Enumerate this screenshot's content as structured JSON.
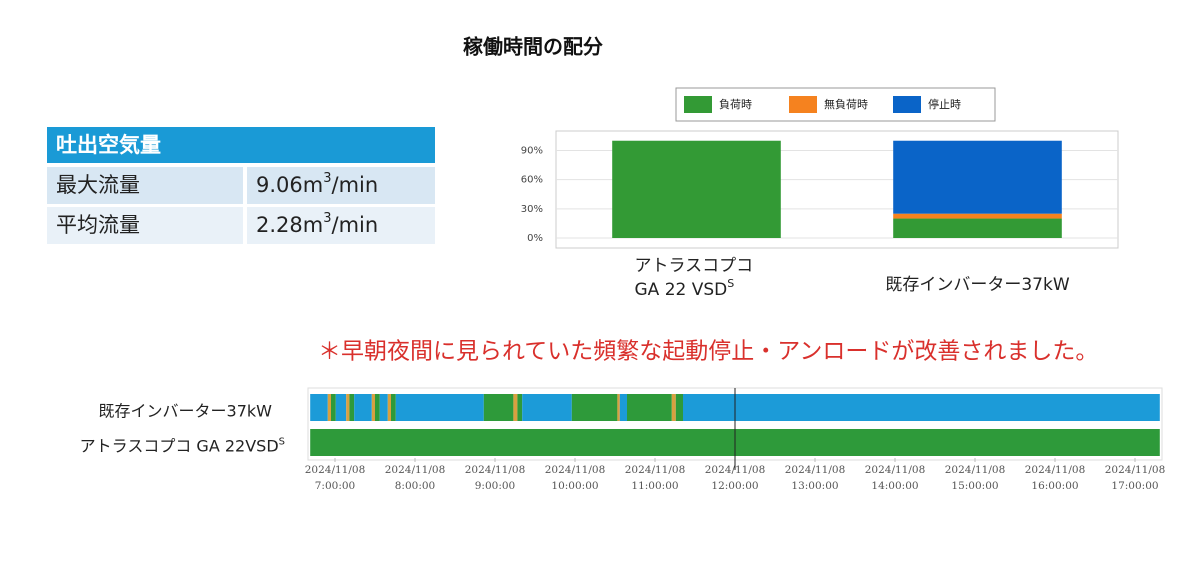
{
  "title": "稼働時間の配分",
  "table": {
    "header": "吐出空気量",
    "rows": [
      [
        {
          "text": "最大流量"
        },
        {
          "text": "9.06m",
          "sup": "3",
          "unit": "/min"
        }
      ],
      [
        {
          "text": "平均流量"
        },
        {
          "text": "2.28m",
          "sup": "3",
          "unit": "/min"
        }
      ]
    ]
  },
  "note": "＊早朝夜間に見られていた頻繁な起動停止・アンロードが改善されました。",
  "chart_data": [
    {
      "type": "bar",
      "stacked": true,
      "categories": [
        "アトラスコプコ\nGA 22 VSD",
        "既存インバーター37kW"
      ],
      "category_superscripts": [
        "S",
        null
      ],
      "series": [
        {
          "name": "負荷時",
          "color": "#339a35",
          "values": [
            100,
            20
          ]
        },
        {
          "name": "無負荷時",
          "color": "#f5821f",
          "values": [
            0,
            5
          ]
        },
        {
          "name": "停止時",
          "color": "#0a64c8",
          "values": [
            0,
            75
          ]
        }
      ],
      "ylim": [
        0,
        110
      ],
      "yticks": [
        {
          "value": 0,
          "label": "0%"
        },
        {
          "value": 30,
          "label": "30%"
        },
        {
          "value": 60,
          "label": "60%"
        },
        {
          "value": 90,
          "label": "90%"
        }
      ],
      "grid": true,
      "legend": "top"
    },
    {
      "type": "timeline",
      "xlim": [
        6.69,
        17.31
      ],
      "xticks": [
        {
          "value": 7,
          "label": "2024/11/08\n7:00:00"
        },
        {
          "value": 8,
          "label": "2024/11/08\n8:00:00"
        },
        {
          "value": 9,
          "label": "2024/11/08\n9:00:00"
        },
        {
          "value": 10,
          "label": "2024/11/08\n10:00:00"
        },
        {
          "value": 11,
          "label": "2024/11/08\n11:00:00"
        },
        {
          "value": 12,
          "label": "2024/11/08\n12:00:00"
        },
        {
          "value": 13,
          "label": "2024/11/08\n13:00:00"
        },
        {
          "value": 14,
          "label": "2024/11/08\n14:00:00"
        },
        {
          "value": 15,
          "label": "2024/11/08\n15:00:00"
        },
        {
          "value": 16,
          "label": "2024/11/08\n16:00:00"
        },
        {
          "value": 17,
          "label": "2024/11/08\n17:00:00"
        }
      ],
      "cursor": 12,
      "rows": [
        {
          "name": "既存インバーター37kW",
          "segments": [
            {
              "start": 6.69,
              "end": 6.91,
              "color": "#1c9bd8"
            },
            {
              "start": 6.91,
              "end": 6.95,
              "color": "#d8a040"
            },
            {
              "start": 6.95,
              "end": 7.01,
              "color": "#2e9a3a"
            },
            {
              "start": 7.01,
              "end": 7.14,
              "color": "#1c9bd8"
            },
            {
              "start": 7.14,
              "end": 7.18,
              "color": "#d8a040"
            },
            {
              "start": 7.18,
              "end": 7.24,
              "color": "#2e9a3a"
            },
            {
              "start": 7.24,
              "end": 7.46,
              "color": "#1c9bd8"
            },
            {
              "start": 7.46,
              "end": 7.5,
              "color": "#d8a040"
            },
            {
              "start": 7.5,
              "end": 7.56,
              "color": "#2e9a3a"
            },
            {
              "start": 7.56,
              "end": 7.66,
              "color": "#1c9bd8"
            },
            {
              "start": 7.66,
              "end": 7.7,
              "color": "#d8a040"
            },
            {
              "start": 7.7,
              "end": 7.76,
              "color": "#2e9a3a"
            },
            {
              "start": 7.76,
              "end": 8.86,
              "color": "#1c9bd8"
            },
            {
              "start": 8.86,
              "end": 9.23,
              "color": "#2e9a3a"
            },
            {
              "start": 9.23,
              "end": 9.28,
              "color": "#d8a040"
            },
            {
              "start": 9.28,
              "end": 9.34,
              "color": "#2e9a3a"
            },
            {
              "start": 9.34,
              "end": 9.96,
              "color": "#1c9bd8"
            },
            {
              "start": 9.96,
              "end": 10.53,
              "color": "#2e9a3a"
            },
            {
              "start": 10.53,
              "end": 10.56,
              "color": "#d8a040"
            },
            {
              "start": 10.56,
              "end": 10.65,
              "color": "#1c9bd8"
            },
            {
              "start": 10.65,
              "end": 11.21,
              "color": "#2e9a3a"
            },
            {
              "start": 11.21,
              "end": 11.26,
              "color": "#d8a040"
            },
            {
              "start": 11.26,
              "end": 11.35,
              "color": "#2e9a3a"
            },
            {
              "start": 11.35,
              "end": 17.31,
              "color": "#1c9bd8"
            }
          ]
        },
        {
          "name": "アトラスコプコ GA 22VSD",
          "superscript": "S",
          "segments": [
            {
              "start": 6.69,
              "end": 17.31,
              "color": "#2e9a3a"
            }
          ]
        }
      ]
    }
  ]
}
